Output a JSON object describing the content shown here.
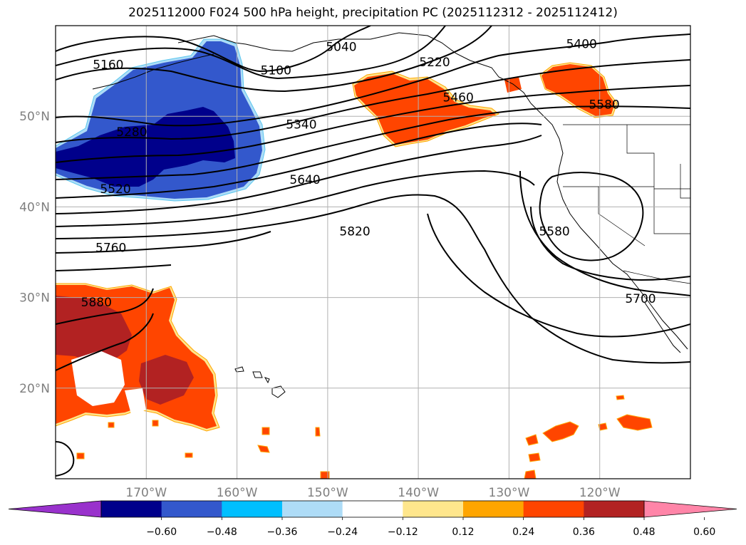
{
  "title": "2025112000 F024 500 hPa height, precipitation PC (2025112312 - 2025112412)",
  "chart_data": {
    "type": "map",
    "projection": "cylindrical",
    "lon_range": [
      -180,
      -110
    ],
    "lat_range": [
      10,
      60
    ],
    "grid": true,
    "lon_ticks": [
      {
        "value": -170,
        "label": "170°W"
      },
      {
        "value": -160,
        "label": "160°W"
      },
      {
        "value": -150,
        "label": "150°W"
      },
      {
        "value": -140,
        "label": "140°W"
      },
      {
        "value": -130,
        "label": "130°W"
      },
      {
        "value": -120,
        "label": "120°W"
      }
    ],
    "lat_ticks": [
      {
        "value": 20,
        "label": "20°N"
      },
      {
        "value": 30,
        "label": "30°N"
      },
      {
        "value": 40,
        "label": "40°N"
      },
      {
        "value": 50,
        "label": "50°N"
      }
    ],
    "contour_labels": [
      {
        "text": "5160",
        "lon": -174.2,
        "lat": 55.7
      },
      {
        "text": "5040",
        "lon": -148.5,
        "lat": 57.7
      },
      {
        "text": "5100",
        "lon": -155.7,
        "lat": 55.1
      },
      {
        "text": "5220",
        "lon": -138.2,
        "lat": 56.0
      },
      {
        "text": "5400",
        "lon": -122.0,
        "lat": 58.0
      },
      {
        "text": "5460",
        "lon": -135.6,
        "lat": 52.1
      },
      {
        "text": "5580",
        "lon": -119.5,
        "lat": 51.3
      },
      {
        "text": "5280",
        "lon": -171.6,
        "lat": 48.3
      },
      {
        "text": "5340",
        "lon": -152.9,
        "lat": 49.1
      },
      {
        "text": "5520",
        "lon": -173.4,
        "lat": 42.0
      },
      {
        "text": "5640",
        "lon": -152.5,
        "lat": 43.0
      },
      {
        "text": "5820",
        "lon": -147.0,
        "lat": 37.3
      },
      {
        "text": "5760",
        "lon": -173.9,
        "lat": 35.5
      },
      {
        "text": "5580",
        "lon": -125.0,
        "lat": 37.3
      },
      {
        "text": "5880",
        "lon": -175.5,
        "lat": 29.5
      },
      {
        "text": "5700",
        "lon": -115.5,
        "lat": 29.9
      }
    ],
    "colorbar": {
      "extend": "both",
      "levels": [
        -0.6,
        -0.48,
        -0.36,
        -0.24,
        -0.12,
        0.12,
        0.24,
        0.36,
        0.48,
        0.6
      ],
      "tick_labels": [
        "−0.60",
        "−0.48",
        "−0.36",
        "−0.24",
        "−0.12",
        "0.12",
        "0.24",
        "0.36",
        "0.48",
        "0.60"
      ],
      "colors": [
        "#9932cc",
        "#00008b",
        "#3358cc",
        "#00bfff",
        "#aedcf7",
        "#ffffff",
        "#ffe68c",
        "#ffa500",
        "#ff4500",
        "#b22222",
        "#ff85a8"
      ]
    }
  }
}
